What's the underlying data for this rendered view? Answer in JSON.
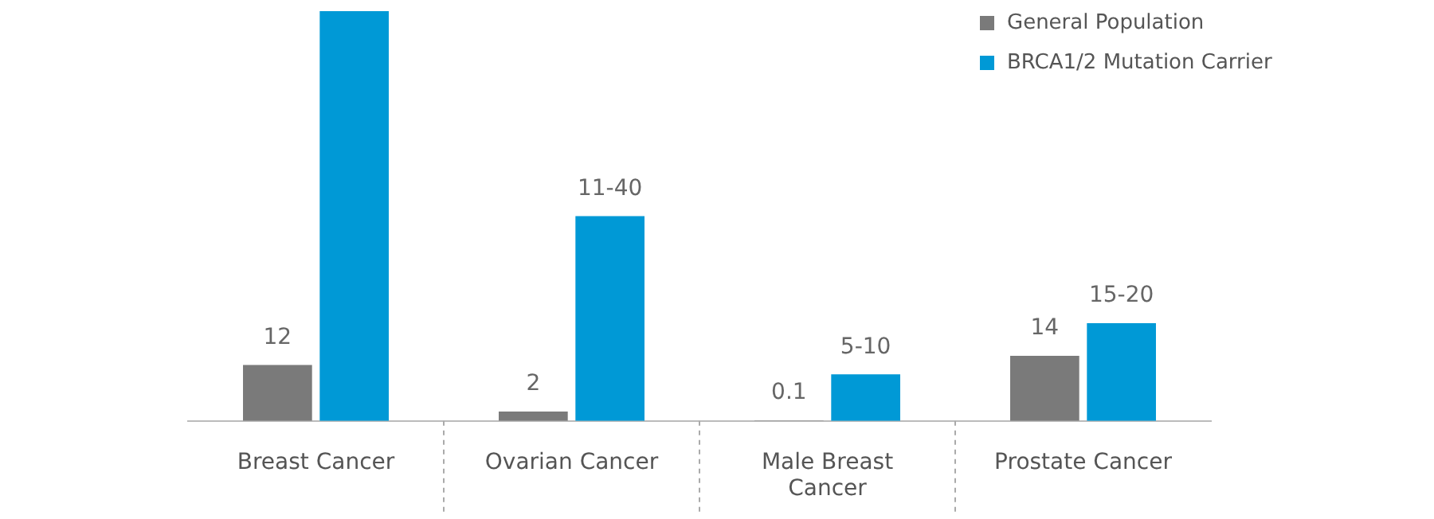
{
  "chart_data": {
    "type": "bar",
    "categories": [
      "Breast Cancer",
      "Ovarian Cancer",
      "Male Breast Cancer",
      "Prostate Cancer"
    ],
    "series": [
      {
        "name": "General Population",
        "color": "#7a7a7a",
        "values": [
          12,
          2,
          0.1,
          14
        ],
        "value_labels": [
          "12",
          "2",
          "0.1",
          "14"
        ]
      },
      {
        "name": "BRCA1/2 Mutation Carrier",
        "color": "#0099d6",
        "values": [
          88,
          44,
          10,
          21
        ],
        "value_labels": [
          null,
          "11-40",
          "5-10",
          "15-20"
        ]
      }
    ],
    "ylim": [
      0,
      88
    ],
    "legend": "top right"
  }
}
